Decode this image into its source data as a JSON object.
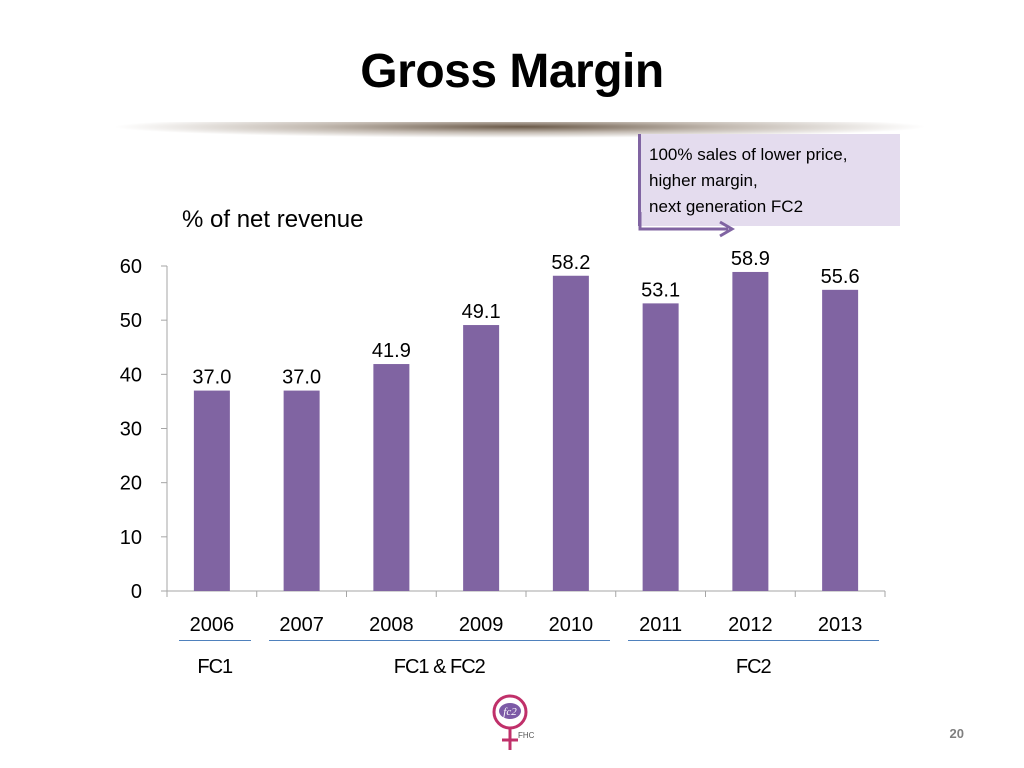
{
  "slide": {
    "title": "Gross Margin",
    "unit_label": "% of net revenue",
    "page_number": "20"
  },
  "callout": {
    "lines": [
      "100% sales of lower price,",
      "higher margin,",
      "next generation FC2"
    ]
  },
  "groups": [
    {
      "label": "FC1",
      "from": "2006",
      "to": "2006"
    },
    {
      "label": "FC1 & FC2",
      "from": "2007",
      "to": "2010"
    },
    {
      "label": "FC2",
      "from": "2011",
      "to": "2013"
    }
  ],
  "logo": {
    "text": "fc2",
    "sub": "FHC"
  },
  "colors": {
    "bar": "#8064a2",
    "callout_bg": "#e4dcee",
    "group_line": "#4f81bd"
  },
  "chart_data": {
    "type": "bar",
    "categories": [
      "2006",
      "2007",
      "2008",
      "2009",
      "2010",
      "2011",
      "2012",
      "2013"
    ],
    "values": [
      37.0,
      37.0,
      41.9,
      49.1,
      58.2,
      53.1,
      58.9,
      55.6
    ],
    "data_labels": [
      "37.0",
      "37.0",
      "41.9",
      "49.1",
      "58.2",
      "53.1",
      "58.9",
      "55.6"
    ],
    "ylim": [
      0,
      60
    ],
    "yticks": [
      0,
      10,
      20,
      30,
      40,
      50,
      60
    ],
    "grid": false
  }
}
